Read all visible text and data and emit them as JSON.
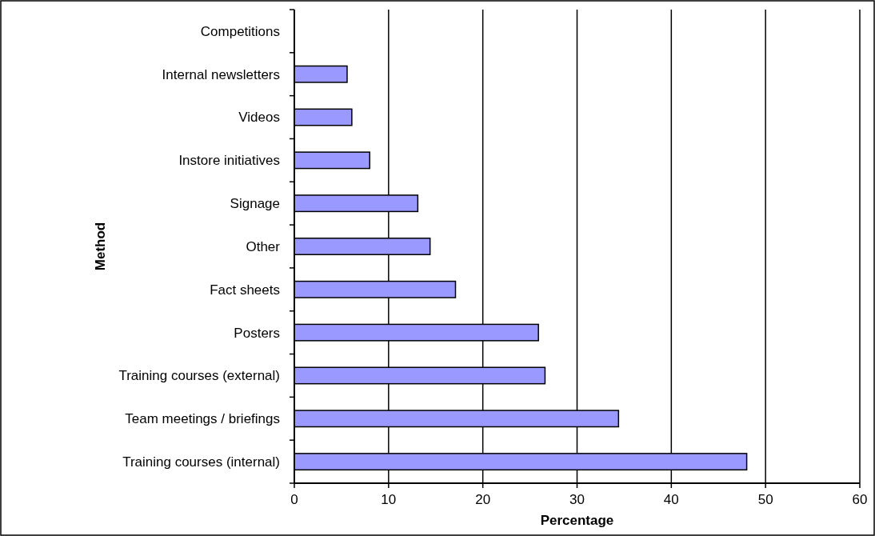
{
  "chart_data": {
    "type": "bar",
    "orientation": "horizontal",
    "xlabel": "Percentage",
    "ylabel": "Method",
    "categories": [
      "Competitions",
      "Internal newsletters",
      "Videos",
      "Instore initiatives",
      "Signage",
      "Other",
      "Fact sheets",
      "Posters",
      "Training courses (external)",
      "Team meetings / briefings",
      "Training courses (internal)"
    ],
    "values": [
      0,
      5.6,
      6.1,
      8.0,
      13.1,
      14.4,
      17.1,
      25.9,
      26.6,
      34.4,
      48.0
    ],
    "color": "#9999ff",
    "xlim": [
      0,
      60
    ],
    "xticks": [
      0,
      10,
      20,
      30,
      40,
      50,
      60
    ],
    "grid": "x"
  }
}
